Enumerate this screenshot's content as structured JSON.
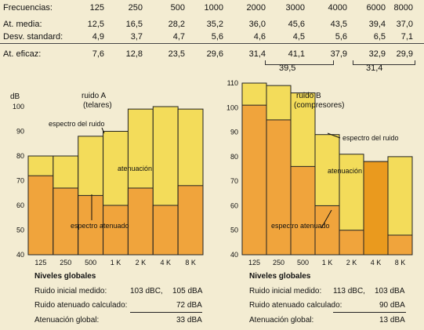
{
  "table": {
    "header_label": "Frecuencias:",
    "frequencies": [
      "125",
      "250",
      "500",
      "1000",
      "2000",
      "3000",
      "4000",
      "6000",
      "8000"
    ],
    "rows": [
      {
        "label": "At. media:",
        "values": [
          "12,5",
          "16,5",
          "28,2",
          "35,2",
          "36,0",
          "45,6",
          "43,5",
          "39,4",
          "37,0"
        ]
      },
      {
        "label": "Desv. standard:",
        "values": [
          "4,9",
          "3,7",
          "4,7",
          "5,6",
          "4,6",
          "4,5",
          "5,6",
          "6,5",
          "7,1"
        ]
      },
      {
        "label": "At. eficaz:",
        "values": [
          "7,6",
          "12,8",
          "23,5",
          "29,6",
          "31,4",
          "41,1",
          "37,9",
          "32,9",
          "29,9"
        ]
      }
    ],
    "combined": [
      "39,5",
      "31,4"
    ]
  },
  "colors": {
    "background": "#f3ecd2",
    "noise_spectrum": "#f3dc5a",
    "attenuated_spectrum": "#f0a43c",
    "attenuated_spectrum_strong": "#ea9a1e",
    "border": "#222222"
  },
  "chart_data": [
    {
      "type": "bar",
      "title": "ruido A",
      "subtitle": "(telares)",
      "ylabel": "dB",
      "ylim": [
        40,
        100
      ],
      "yticks": [
        40,
        50,
        60,
        70,
        80,
        90,
        100
      ],
      "categories": [
        "125",
        "250",
        "500",
        "1 K",
        "2 K",
        "4 K",
        "8 K"
      ],
      "series": [
        {
          "name": "espectro del ruido",
          "values": [
            80,
            80,
            88,
            90,
            99,
            100,
            99
          ]
        },
        {
          "name": "espectro atenuado",
          "values": [
            72,
            67,
            64,
            60,
            67,
            60,
            68
          ]
        }
      ],
      "annotations": [
        "atenuación"
      ]
    },
    {
      "type": "bar",
      "title": "ruido B",
      "subtitle": "(compresores)",
      "ylim": [
        40,
        110
      ],
      "yticks": [
        40,
        50,
        60,
        70,
        80,
        90,
        100,
        110
      ],
      "categories": [
        "125",
        "250",
        "500",
        "1 K",
        "2 K",
        "4 K",
        "8 K"
      ],
      "series": [
        {
          "name": "espectro del ruido",
          "values": [
            110,
            109,
            106,
            89,
            81,
            78,
            80
          ]
        },
        {
          "name": "espectro atenuado",
          "values": [
            101,
            95,
            76,
            60,
            50,
            78,
            48
          ]
        }
      ],
      "annotations": [
        "atenuación"
      ]
    }
  ],
  "summary_a": {
    "heading": "Niveles globales",
    "lines": [
      {
        "label": "Ruido inicial medido:",
        "v1": "103 dBC,",
        "v2": "105 dBA"
      },
      {
        "label": "Ruido atenuado calculado:",
        "v1": "",
        "v2": "72 dBA"
      },
      {
        "label": "Atenuación global:",
        "v1": "",
        "v2": "33 dBA"
      }
    ]
  },
  "summary_b": {
    "heading": "Niveles globales",
    "lines": [
      {
        "label": "Ruido inicial medido:",
        "v1": "113 dBC,",
        "v2": "103 dBA"
      },
      {
        "label": "Ruido atenuado calculado:",
        "v1": "",
        "v2": "90 dBA"
      },
      {
        "label": "Atenuación global:",
        "v1": "",
        "v2": "13 dBA"
      }
    ]
  }
}
